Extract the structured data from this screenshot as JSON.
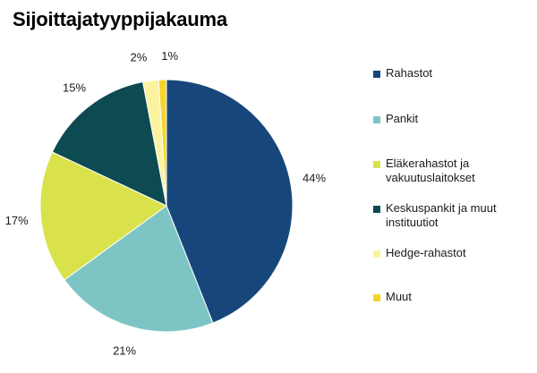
{
  "chart_data": {
    "type": "pie",
    "title": "Sijoittajatyyppijakauma",
    "legend_position": "right",
    "slices": [
      {
        "label": "Rahastot",
        "value": 44,
        "value_label": "44%",
        "color": "#17477a"
      },
      {
        "label": "Pankit",
        "value": 21,
        "value_label": "21%",
        "color": "#7dc5c5"
      },
      {
        "label": "Eläkerahastot ja vakuutuslaitokset",
        "value": 17,
        "value_label": "17%",
        "color": "#d9e24a"
      },
      {
        "label": "Keskuspankit ja muut instituutiot",
        "value": 15,
        "value_label": "15%",
        "color": "#0e4a52"
      },
      {
        "label": "Hedge-rahastot",
        "value": 2,
        "value_label": "2%",
        "color": "#fbf3a0"
      },
      {
        "label": "Muut",
        "value": 1,
        "value_label": "1%",
        "color": "#f5d52a"
      }
    ]
  }
}
